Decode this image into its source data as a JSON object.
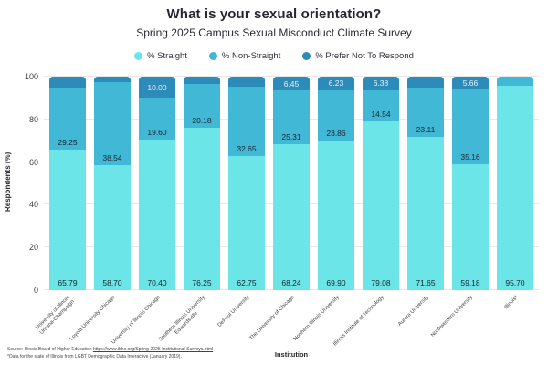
{
  "header": {
    "title": "What is your sexual orientation?",
    "subtitle": "Spring 2025 Campus Sexual Misconduct Climate Survey"
  },
  "legend": {
    "items": [
      {
        "label": "% Straight",
        "color": "#6CE5E8"
      },
      {
        "label": "% Non-Straight",
        "color": "#41B8D5"
      },
      {
        "label": "% Prefer Not To Respond",
        "color": "#2D8BBA"
      }
    ]
  },
  "chart_data": {
    "type": "bar",
    "stacked": true,
    "title": "What is your sexual orientation?",
    "subtitle": "Spring 2025 Campus Sexual Misconduct Climate Survey",
    "xlabel": "Institution",
    "ylabel": "Respondents (%)",
    "ylim": [
      0,
      100
    ],
    "yticks": [
      0,
      20,
      40,
      60,
      80,
      100
    ],
    "grid": true,
    "legend_position": "top",
    "categories": [
      "University of Illinois\nUrbana-Champaign",
      "Loyola University Chicago",
      "University of Illinois Chicago",
      "Southern Illinois University\nEdwardsville",
      "DePaul University",
      "The University of Chicago",
      "Northern Illinois University",
      "Illinois Institute of Technology",
      "Aurora University",
      "Northwestern University",
      "Illinois*"
    ],
    "series": [
      {
        "name": "% Straight",
        "color": "#6CE5E8",
        "values": [
          65.79,
          58.7,
          70.4,
          76.25,
          62.75,
          68.24,
          69.9,
          79.08,
          71.65,
          59.18,
          95.7
        ]
      },
      {
        "name": "% Non-Straight",
        "color": "#41B8D5",
        "values": [
          29.25,
          38.54,
          19.6,
          20.18,
          32.65,
          25.31,
          23.86,
          14.54,
          23.11,
          35.16,
          4.3
        ]
      },
      {
        "name": "% Prefer Not To Respond",
        "color": "#2D8BBA",
        "values": [
          4.96,
          2.76,
          10.0,
          3.57,
          4.6,
          6.45,
          6.23,
          6.38,
          5.24,
          5.66,
          0
        ]
      }
    ],
    "value_labels": [
      [
        "65.79",
        "58.70",
        "70.40",
        "76.25",
        "62.75",
        "68.24",
        "69.90",
        "79.08",
        "71.65",
        "59.18",
        "95.70"
      ],
      [
        "29.25",
        "38.54",
        "19.60",
        "20.18",
        "32.65",
        "25.31",
        "23.86",
        "14.54",
        "23.11",
        "35.16",
        ""
      ],
      [
        "",
        "",
        "10.00",
        "",
        "",
        "6.45",
        "6.23",
        "6.38",
        "",
        "5.66",
        ""
      ]
    ]
  },
  "footer": {
    "source_prefix": "Source: Illinois Board of Higher Education ",
    "source_url": "https://www.ibhe.org/Spring-2025-Institutional-Surveys.html",
    "source_note": "*Data for the state of Illinois from LGBT Demographic Data Interactive (January 2019)."
  }
}
